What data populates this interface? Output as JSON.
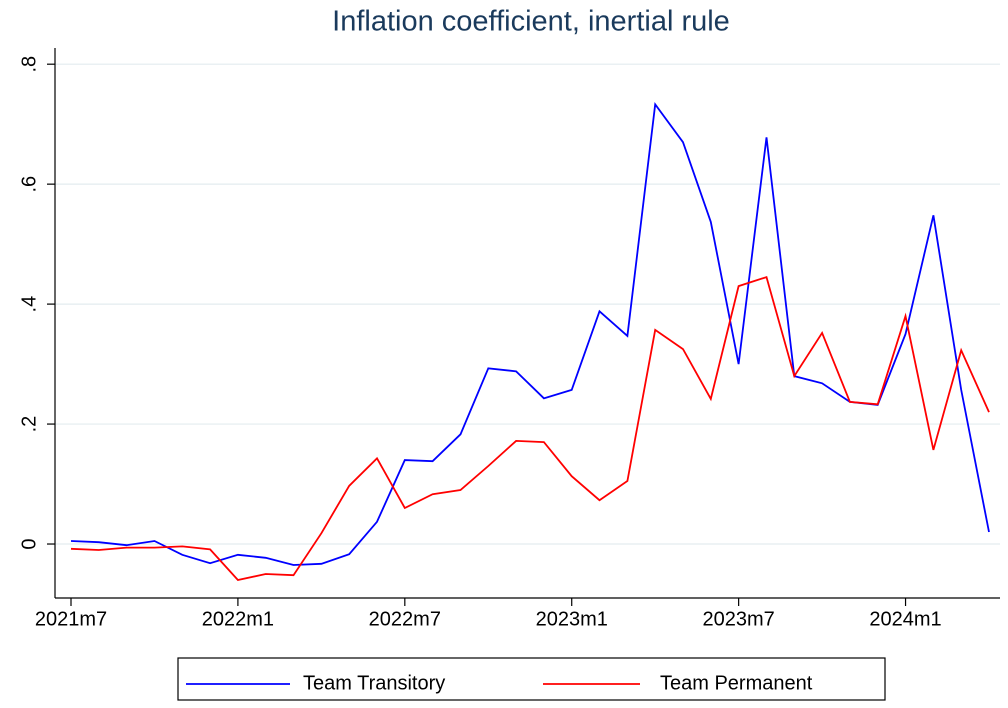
{
  "chart_data": {
    "type": "line",
    "title": "Inflation coefficient, inertial rule",
    "categories": [
      "2021m7",
      null,
      null,
      null,
      null,
      null,
      "2022m1",
      null,
      null,
      null,
      null,
      null,
      "2022m7",
      null,
      null,
      null,
      null,
      null,
      "2023m1",
      null,
      null,
      null,
      null,
      null,
      "2023m7",
      null,
      null,
      null,
      null,
      null,
      "2024m1",
      null,
      null,
      null
    ],
    "series": [
      {
        "name": "Team Transitory",
        "color": "#0000ff",
        "values": [
          0.005,
          0.003,
          -0.002,
          0.005,
          -0.018,
          -0.032,
          -0.018,
          -0.023,
          -0.035,
          -0.033,
          -0.017,
          0.037,
          0.14,
          0.138,
          0.183,
          0.293,
          0.288,
          0.243,
          0.257,
          0.388,
          0.347,
          0.733,
          0.67,
          0.537,
          0.3,
          0.678,
          0.28,
          0.268,
          0.237,
          0.232,
          0.35,
          0.548,
          0.257,
          0.02
        ]
      },
      {
        "name": "Team Permanent",
        "color": "#ff0000",
        "values": [
          -0.008,
          -0.01,
          -0.006,
          -0.006,
          -0.004,
          -0.009,
          -0.06,
          -0.05,
          -0.052,
          0.018,
          0.097,
          0.143,
          0.06,
          0.083,
          0.09,
          0.13,
          0.172,
          0.17,
          0.113,
          0.073,
          0.105,
          0.357,
          0.325,
          0.242,
          0.43,
          0.445,
          0.28,
          0.352,
          0.237,
          0.233,
          0.38,
          0.157,
          0.323,
          0.22
        ]
      }
    ],
    "ylim": [
      -0.09,
      0.827
    ],
    "yticks": [
      0,
      {
        "value": 0.2,
        "label": ".2"
      },
      {
        "value": 0.4,
        "label": ".4"
      },
      {
        "value": 0.6,
        "label": ".6"
      },
      {
        "value": 0.8,
        "label": ".8"
      }
    ],
    "grid": true
  }
}
